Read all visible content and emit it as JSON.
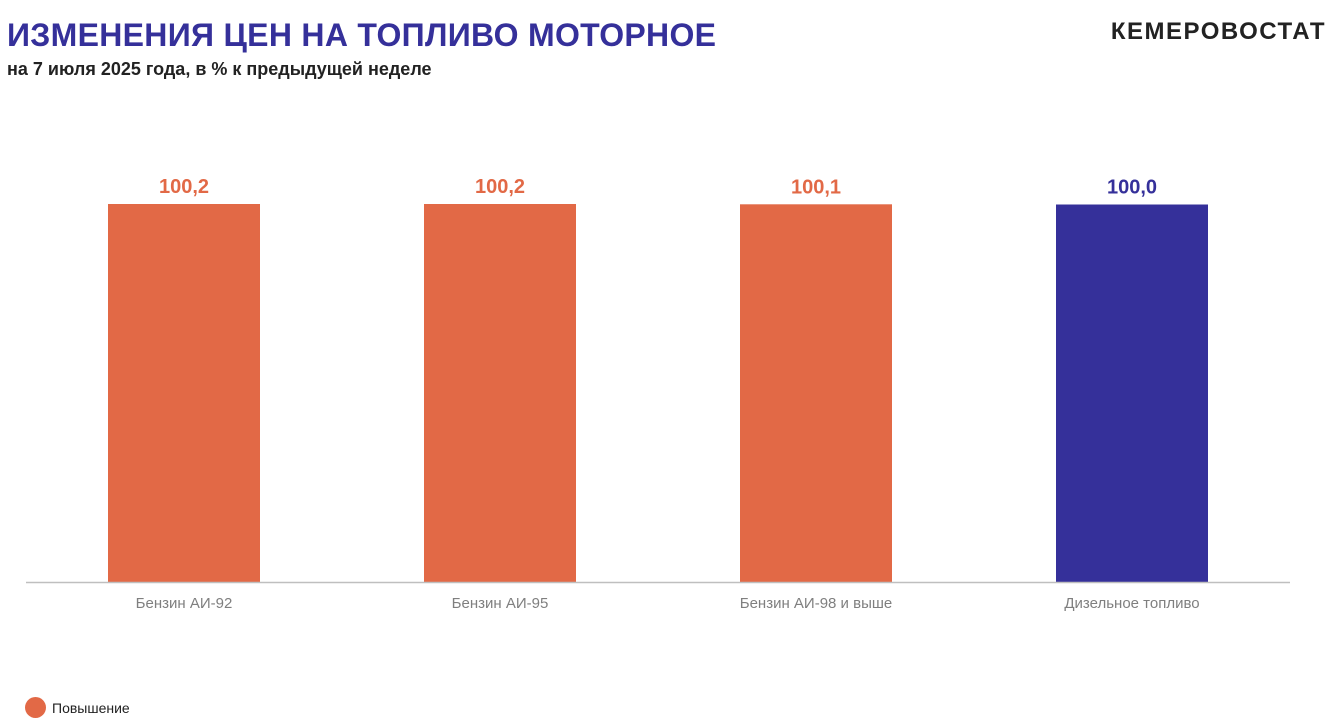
{
  "header": {
    "title": "ИЗМЕНЕНИЯ ЦЕН НА ТОПЛИВО МОТОРНОЕ",
    "subtitle": "на 7 июля 2025 года, в % к предыдущей неделе",
    "brand": "КЕМЕРОВОСТАТ"
  },
  "colors": {
    "accent": "#35309a",
    "increase": "#e26946",
    "no_change": "#35309a",
    "axis": "#bfbfbf",
    "category_text": "#7f7f7f"
  },
  "legend": {
    "items": [
      {
        "label": "Повышение",
        "color": "#e26946"
      }
    ]
  },
  "chart_data": {
    "type": "bar",
    "title": "ИЗМЕНЕНИЯ ЦЕН НА ТОПЛИВО МОТОРНОЕ",
    "subtitle": "на 7 июля 2025 года, в % к предыдущей неделе",
    "categories": [
      "Бензин АИ-92",
      "Бензин АИ-95",
      "Бензин АИ-98 и выше",
      "Дизельное топливо"
    ],
    "values": [
      100.2,
      100.2,
      100.1,
      100.0
    ],
    "value_labels": [
      "100,2",
      "100,2",
      "100,1",
      "100,0"
    ],
    "bar_colors": [
      "#e26946",
      "#e26946",
      "#e26946",
      "#35309a"
    ],
    "xlabel": "",
    "ylabel": "",
    "grid": false,
    "legend_position": "bottom-left"
  }
}
